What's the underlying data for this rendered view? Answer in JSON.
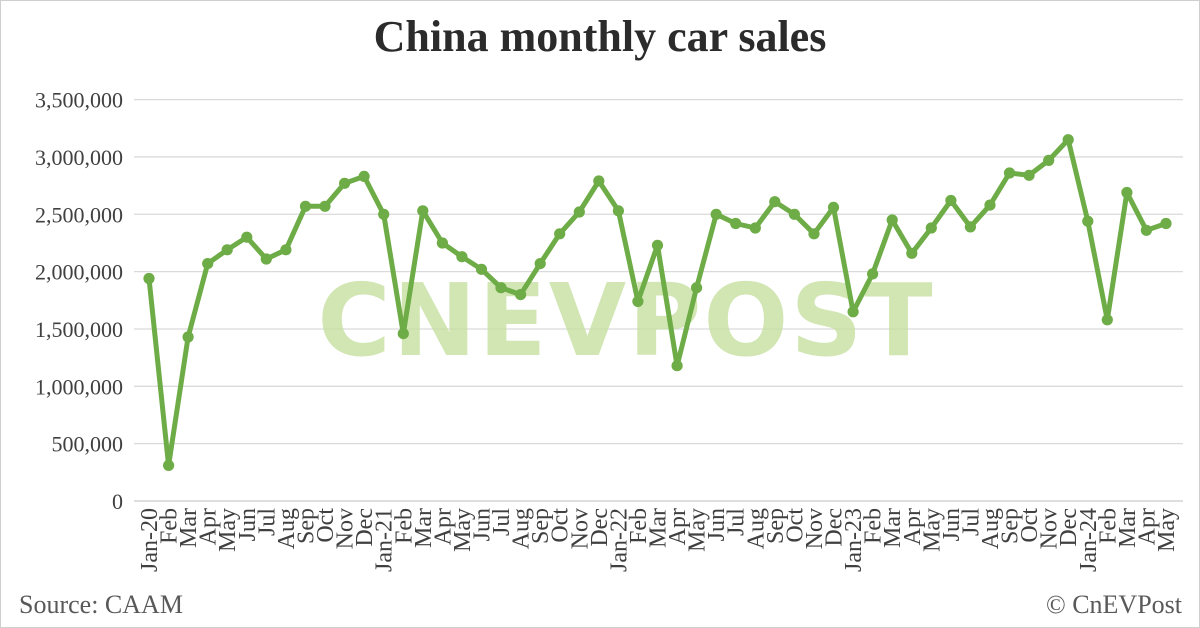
{
  "title": "China monthly car sales",
  "watermark": "CNEVPOST",
  "footer": {
    "source": "Source: CAAM",
    "copyright": "© CnEVPost"
  },
  "colors": {
    "line": "#6dac46",
    "marker": "#6dac46",
    "watermark": "#c6e0a0",
    "grid": "#dadada",
    "axis_line": "#c9c9c9",
    "axis_text": "#404040",
    "title_text": "#2b2b2b",
    "footer_text": "#595959",
    "background": "#ffffff"
  },
  "chart_data": {
    "type": "line",
    "title": "China monthly car sales",
    "categories": [
      "Jan-20",
      "Feb",
      "Mar",
      "Apr",
      "May",
      "Jun",
      "Jul",
      "Aug",
      "Sep",
      "Oct",
      "Nov",
      "Dec",
      "Jan-21",
      "Feb",
      "Mar",
      "Apr",
      "May",
      "Jun",
      "Jul",
      "Aug",
      "Sep",
      "Oct",
      "Nov",
      "Dec",
      "Jan-22",
      "Feb",
      "Mar",
      "Apr",
      "May",
      "Jun",
      "Jul",
      "Aug",
      "Sep",
      "Oct",
      "Nov",
      "Dec",
      "Jan-23",
      "Feb",
      "Mar",
      "Apr",
      "May",
      "Jun",
      "Jul",
      "Aug",
      "Sep",
      "Oct",
      "Nov",
      "Dec",
      "Jan-24",
      "Feb",
      "Mar",
      "Apr",
      "May"
    ],
    "values": [
      1940000,
      310000,
      1430000,
      2070000,
      2190000,
      2300000,
      2110000,
      2190000,
      2570000,
      2570000,
      2770000,
      2830000,
      2500000,
      1460000,
      2530000,
      2250000,
      2130000,
      2020000,
      1860000,
      1800000,
      2070000,
      2330000,
      2520000,
      2790000,
      2530000,
      1740000,
      2230000,
      1180000,
      1860000,
      2500000,
      2420000,
      2380000,
      2610000,
      2500000,
      2330000,
      2560000,
      1650000,
      1980000,
      2450000,
      2160000,
      2380000,
      2620000,
      2390000,
      2580000,
      2860000,
      2840000,
      2970000,
      3150000,
      2440000,
      1580000,
      2690000,
      2360000,
      2420000
    ],
    "xlabel": "",
    "ylabel": "",
    "ylim": [
      0,
      3500000
    ],
    "ytick_step": 500000,
    "ytick_labels": [
      "3,500,000",
      "3,000,000",
      "2,500,000",
      "2,000,000",
      "1,500,000",
      "1,000,000",
      "500,000",
      "0"
    ],
    "grid": "horizontal",
    "legend_position": "none",
    "x_label_rotation": -90
  }
}
